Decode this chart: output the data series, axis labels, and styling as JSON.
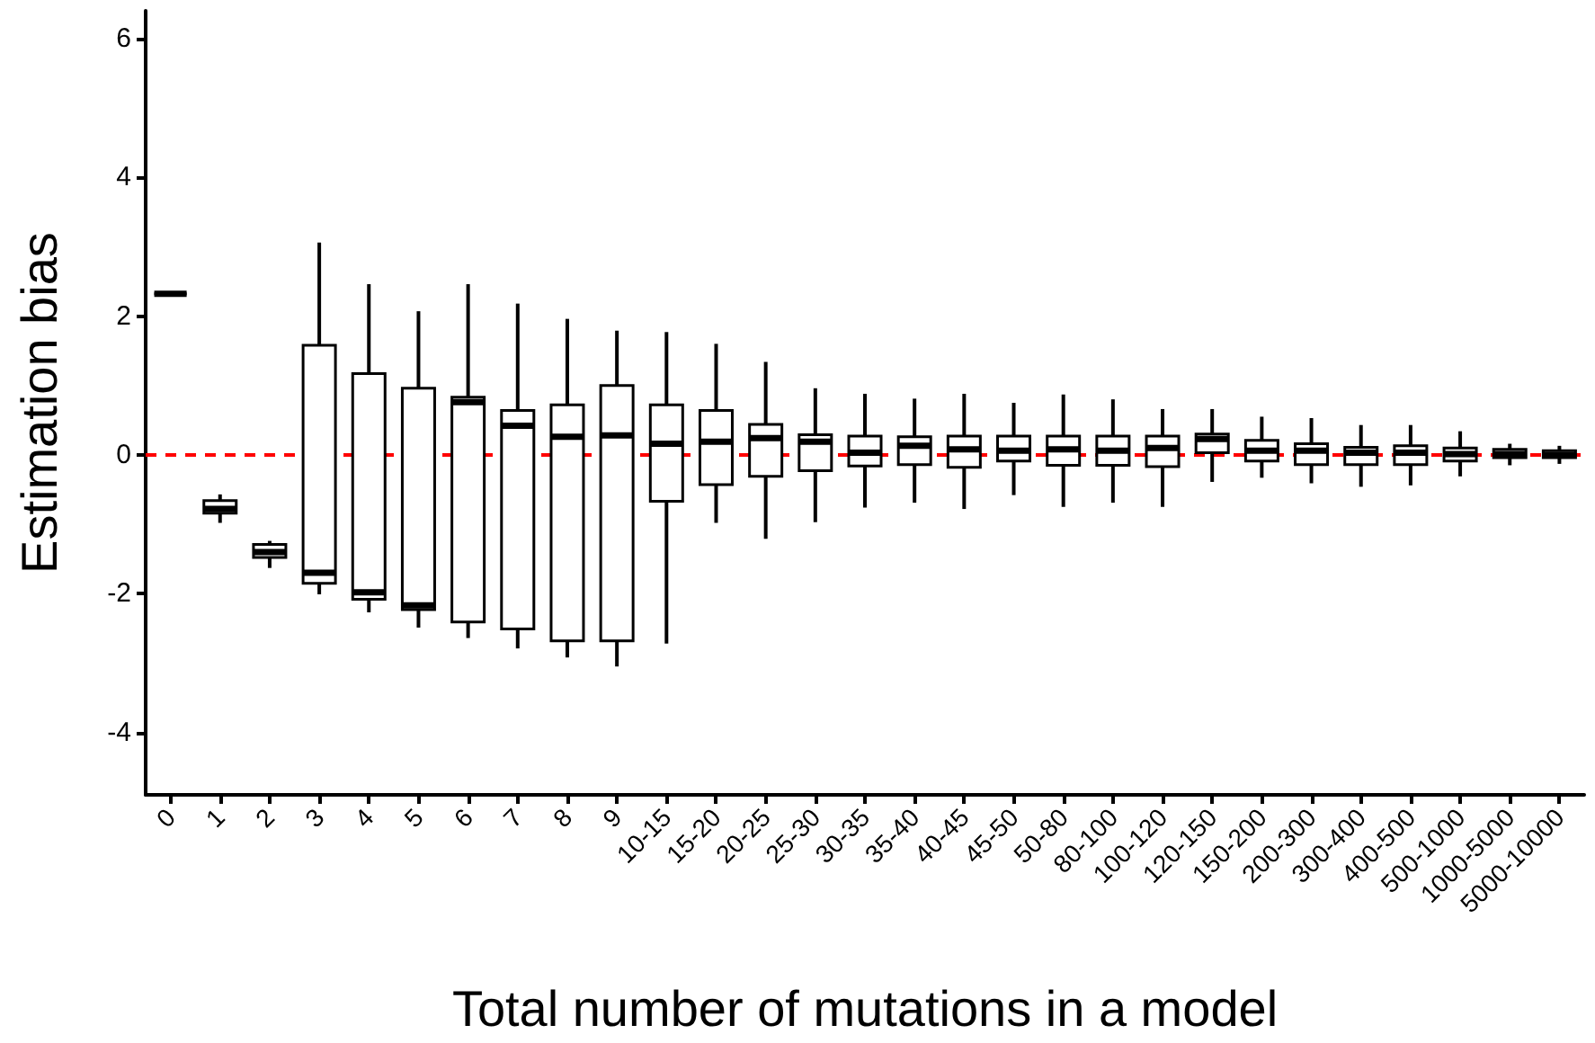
{
  "chart_data": {
    "type": "box",
    "xlabel": "Total number of mutations in a model",
    "ylabel": "Estimation bias",
    "categories": [
      "0",
      "1",
      "2",
      "3",
      "4",
      "5",
      "6",
      "7",
      "8",
      "9",
      "10-15",
      "15-20",
      "20-25",
      "25-30",
      "30-35",
      "35-40",
      "40-45",
      "45-50",
      "50-80",
      "80-100",
      "100-120",
      "120-150",
      "150-200",
      "200-300",
      "300-400",
      "400-500",
      "500-1000",
      "1000-5000",
      "5000-10000"
    ],
    "boxes": [
      {
        "low": 2.32,
        "q1": 2.32,
        "median": 2.32,
        "q3": 2.32,
        "high": 2.32
      },
      {
        "low": -0.98,
        "q1": -0.84,
        "median": -0.78,
        "q3": -0.66,
        "high": -0.57
      },
      {
        "low": -1.63,
        "q1": -1.48,
        "median": -1.4,
        "q3": -1.29,
        "high": -1.24
      },
      {
        "low": -2.01,
        "q1": -1.85,
        "median": -1.7,
        "q3": 1.58,
        "high": 3.06
      },
      {
        "low": -2.27,
        "q1": -2.08,
        "median": -1.98,
        "q3": 1.17,
        "high": 2.46
      },
      {
        "low": -2.49,
        "q1": -2.23,
        "median": -2.17,
        "q3": 0.96,
        "high": 2.07
      },
      {
        "low": -2.64,
        "q1": -2.41,
        "median": 0.76,
        "q3": 0.83,
        "high": 2.46
      },
      {
        "low": -2.79,
        "q1": -2.51,
        "median": 0.42,
        "q3": 0.64,
        "high": 2.18
      },
      {
        "low": -2.92,
        "q1": -2.68,
        "median": 0.26,
        "q3": 0.72,
        "high": 1.96
      },
      {
        "low": -3.05,
        "q1": -2.68,
        "median": 0.28,
        "q3": 1.0,
        "high": 1.79
      },
      {
        "low": -2.72,
        "q1": -0.67,
        "median": 0.16,
        "q3": 0.72,
        "high": 1.77
      },
      {
        "low": -0.98,
        "q1": -0.43,
        "median": 0.19,
        "q3": 0.64,
        "high": 1.6
      },
      {
        "low": -1.21,
        "q1": -0.31,
        "median": 0.24,
        "q3": 0.44,
        "high": 1.34
      },
      {
        "low": -0.97,
        "q1": -0.23,
        "median": 0.19,
        "q3": 0.29,
        "high": 0.96
      },
      {
        "low": -0.76,
        "q1": -0.16,
        "median": 0.03,
        "q3": 0.27,
        "high": 0.88
      },
      {
        "low": -0.69,
        "q1": -0.14,
        "median": 0.13,
        "q3": 0.26,
        "high": 0.81
      },
      {
        "low": -0.78,
        "q1": -0.18,
        "median": 0.08,
        "q3": 0.27,
        "high": 0.88
      },
      {
        "low": -0.58,
        "q1": -0.09,
        "median": 0.06,
        "q3": 0.27,
        "high": 0.75
      },
      {
        "low": -0.75,
        "q1": -0.15,
        "median": 0.08,
        "q3": 0.27,
        "high": 0.87
      },
      {
        "low": -0.69,
        "q1": -0.15,
        "median": 0.06,
        "q3": 0.27,
        "high": 0.8
      },
      {
        "low": -0.75,
        "q1": -0.17,
        "median": 0.1,
        "q3": 0.27,
        "high": 0.66
      },
      {
        "low": -0.39,
        "q1": 0.03,
        "median": 0.23,
        "q3": 0.3,
        "high": 0.66
      },
      {
        "low": -0.33,
        "q1": -0.09,
        "median": 0.06,
        "q3": 0.21,
        "high": 0.55
      },
      {
        "low": -0.41,
        "q1": -0.14,
        "median": 0.06,
        "q3": 0.16,
        "high": 0.53
      },
      {
        "low": -0.46,
        "q1": -0.14,
        "median": 0.03,
        "q3": 0.11,
        "high": 0.43
      },
      {
        "low": -0.44,
        "q1": -0.14,
        "median": 0.03,
        "q3": 0.13,
        "high": 0.43
      },
      {
        "low": -0.31,
        "q1": -0.09,
        "median": 0.01,
        "q3": 0.1,
        "high": 0.34
      },
      {
        "low": -0.15,
        "q1": -0.04,
        "median": 0.01,
        "q3": 0.08,
        "high": 0.16
      },
      {
        "low": -0.13,
        "q1": -0.04,
        "median": 0.0,
        "q3": 0.06,
        "high": 0.13
      }
    ],
    "ylim": [
      -4.9,
      6.4
    ],
    "yticks": [
      -4,
      -2,
      0,
      2,
      4,
      6
    ],
    "ref_lines": [
      {
        "axis": "y",
        "value": 0,
        "color": "#ff0000",
        "line_style": "dashed"
      }
    ],
    "grid": false
  }
}
